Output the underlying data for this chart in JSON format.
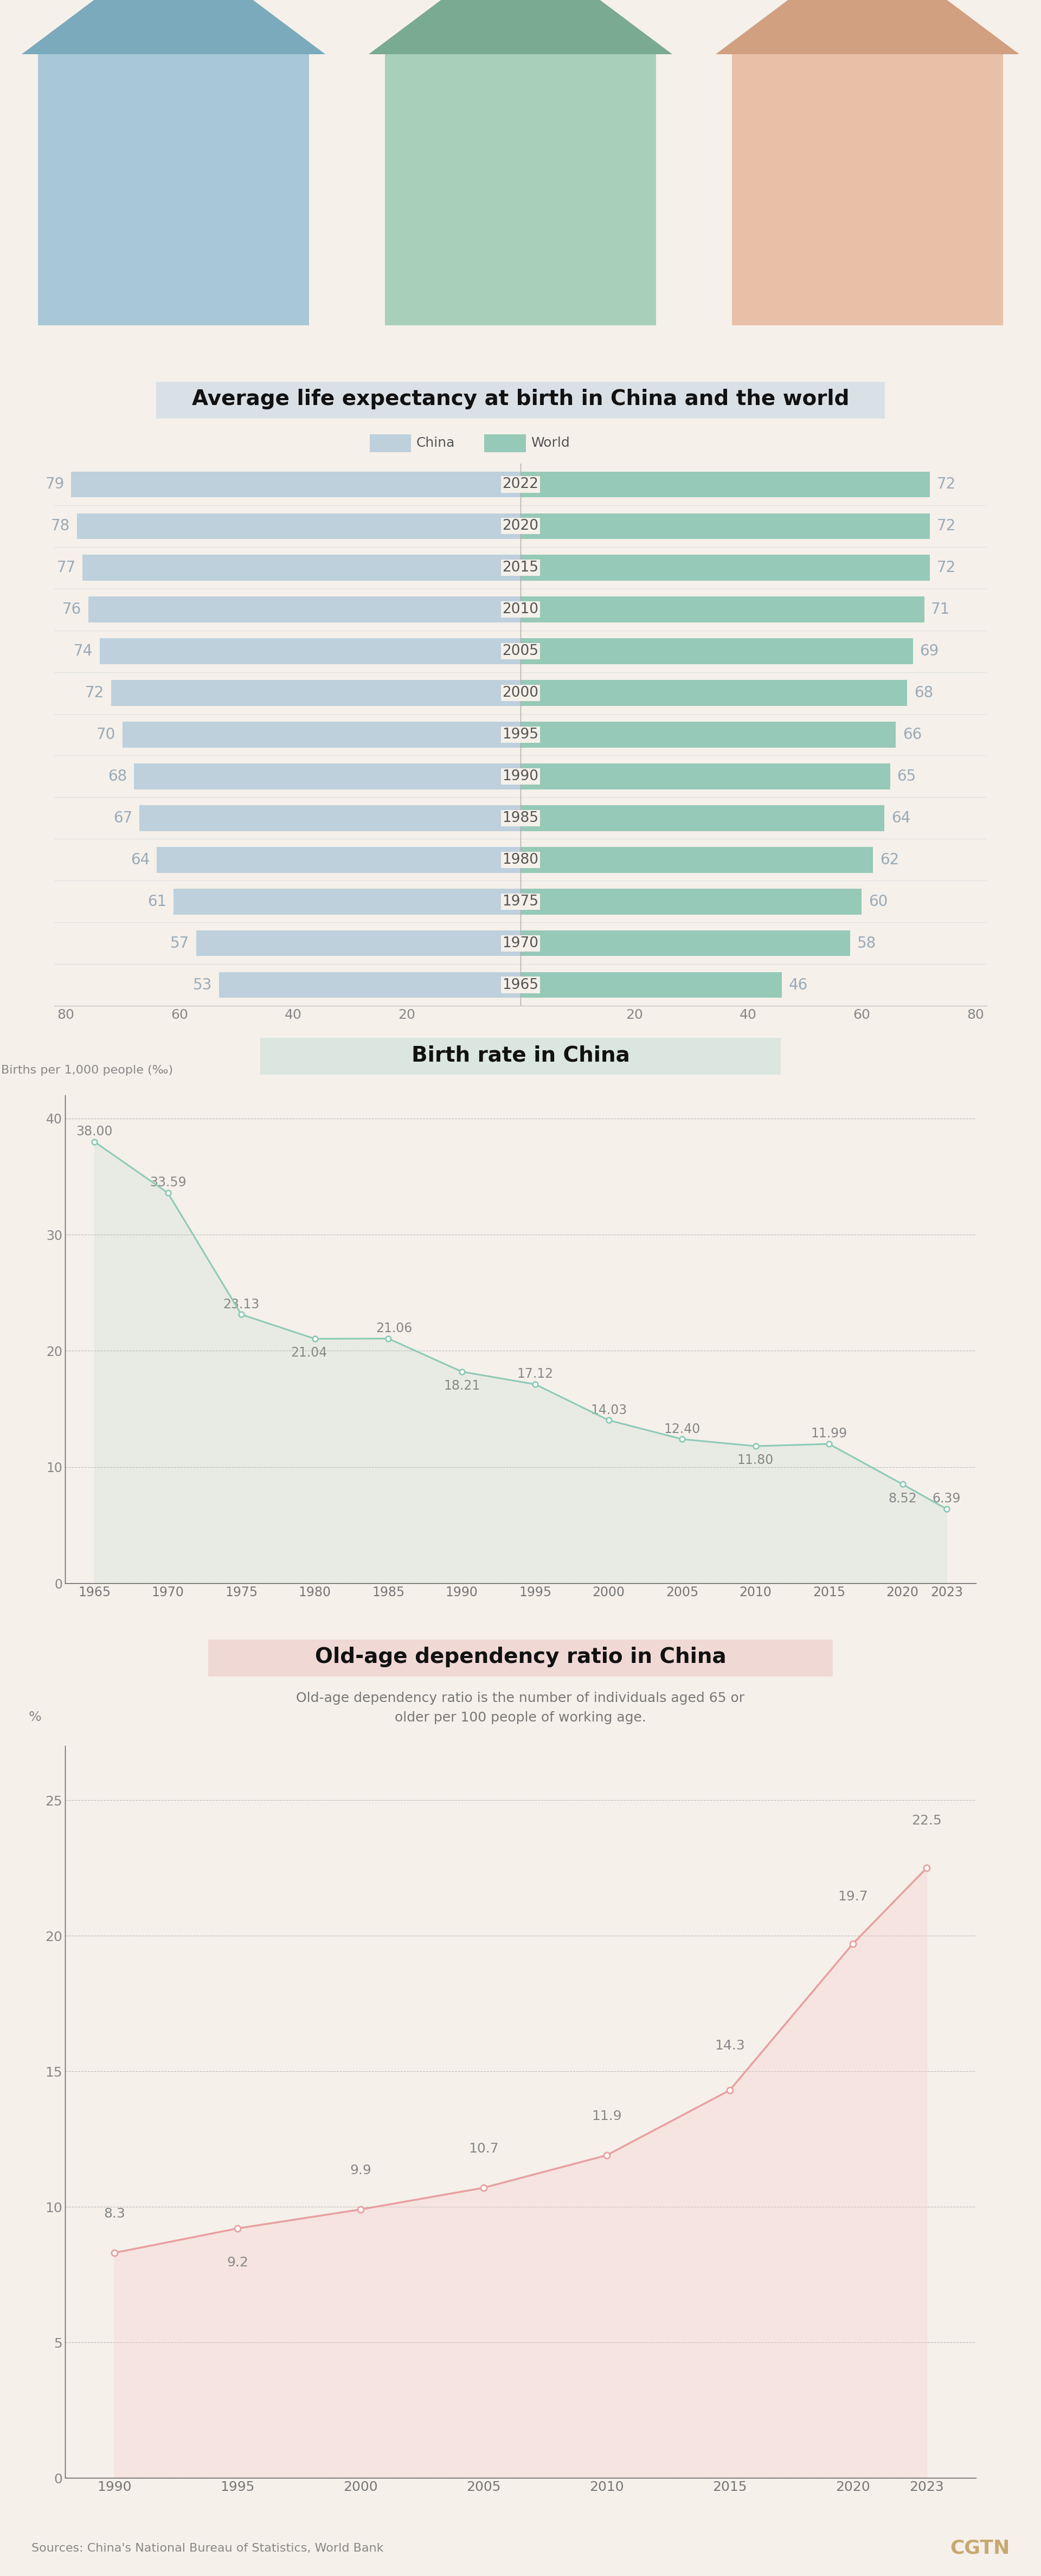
{
  "bg_color": "#F5F0EA",
  "title1": "Average life expectancy at birth in China and the world",
  "title2": "Birth rate in China",
  "title3": "Old-age dependency ratio in China",
  "subtitle3": "Old-age dependency ratio is the number of individuals aged 65 or\nolder per 100 people of working age.",
  "source_text": "Sources: China's National Bureau of Statistics, World Bank",
  "brand_text": "CGTN",
  "life_years": [
    1965,
    1970,
    1975,
    1980,
    1985,
    1990,
    1995,
    2000,
    2005,
    2010,
    2015,
    2020,
    2022
  ],
  "life_china": [
    53,
    57,
    61,
    64,
    67,
    68,
    70,
    72,
    74,
    76,
    77,
    78,
    79
  ],
  "life_world": [
    46,
    58,
    60,
    62,
    64,
    65,
    66,
    68,
    69,
    71,
    72,
    72,
    72
  ],
  "china_color": "#BDD0DC",
  "world_color": "#96C9B7",
  "birth_years": [
    1965,
    1970,
    1975,
    1980,
    1985,
    1990,
    1995,
    2000,
    2005,
    2010,
    2015,
    2020,
    2023
  ],
  "birth_values": [
    38.0,
    33.59,
    23.13,
    21.04,
    21.06,
    18.21,
    17.12,
    14.03,
    12.4,
    11.8,
    11.99,
    8.52,
    6.39
  ],
  "birth_line_color": "#8ECAB8",
  "birth_marker_color": "#8ECAB8",
  "dep_years": [
    1990,
    1995,
    2000,
    2005,
    2010,
    2015,
    2020,
    2023
  ],
  "dep_values": [
    8.3,
    9.2,
    9.9,
    10.7,
    11.9,
    14.3,
    19.7,
    22.5
  ],
  "dep_line_color": "#E8A0A0",
  "dep_fill_color": "#F5D0D0",
  "title1_bg": "#C8D8E4",
  "title2_bg": "#C8E0D8",
  "title3_bg": "#EEC8C8",
  "house1_body": "#A8C8D8",
  "house1_roof": "#7AAABB",
  "house2_body": "#A8D0B8",
  "house2_roof": "#7AAA90",
  "house3_body": "#E8C0A8",
  "house3_roof": "#D0A080"
}
